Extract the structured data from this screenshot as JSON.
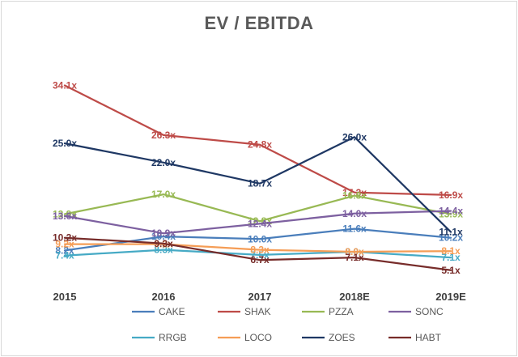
{
  "chart_data": {
    "type": "line",
    "title": "EV  / EBITDA",
    "categories": [
      "2015",
      "2016",
      "2017",
      "2018E",
      "2019E"
    ],
    "label_suffix": "x",
    "ylim": [
      0,
      40
    ],
    "grid": false,
    "legend_position": "bottom",
    "series": [
      {
        "name": "CAKE",
        "color": "#4a7ebb",
        "values": [
          8.2,
          10.4,
          10.0,
          11.6,
          10.2
        ]
      },
      {
        "name": "SHAK",
        "color": "#be4b48",
        "values": [
          34.1,
          26.3,
          24.8,
          17.3,
          16.9
        ]
      },
      {
        "name": "PZZA",
        "color": "#98b954",
        "values": [
          13.9,
          17.0,
          12.8,
          16.8,
          13.9
        ]
      },
      {
        "name": "SONC",
        "color": "#7d60a0",
        "values": [
          13.6,
          10.9,
          12.4,
          14.0,
          14.4
        ]
      },
      {
        "name": "RRGB",
        "color": "#46aac5",
        "values": [
          7.4,
          8.3,
          7.5,
          8.0,
          7.1
        ]
      },
      {
        "name": "LOCO",
        "color": "#f59d56",
        "values": [
          9.2,
          9.2,
          8.3,
          8.0,
          8.1
        ]
      },
      {
        "name": "ZOES",
        "color": "#1f3864",
        "values": [
          25.0,
          22.0,
          18.7,
          26.0,
          11.1
        ]
      },
      {
        "name": "HABT",
        "color": "#772c2a",
        "values": [
          10.2,
          9.3,
          6.7,
          7.1,
          5.1
        ]
      }
    ]
  }
}
